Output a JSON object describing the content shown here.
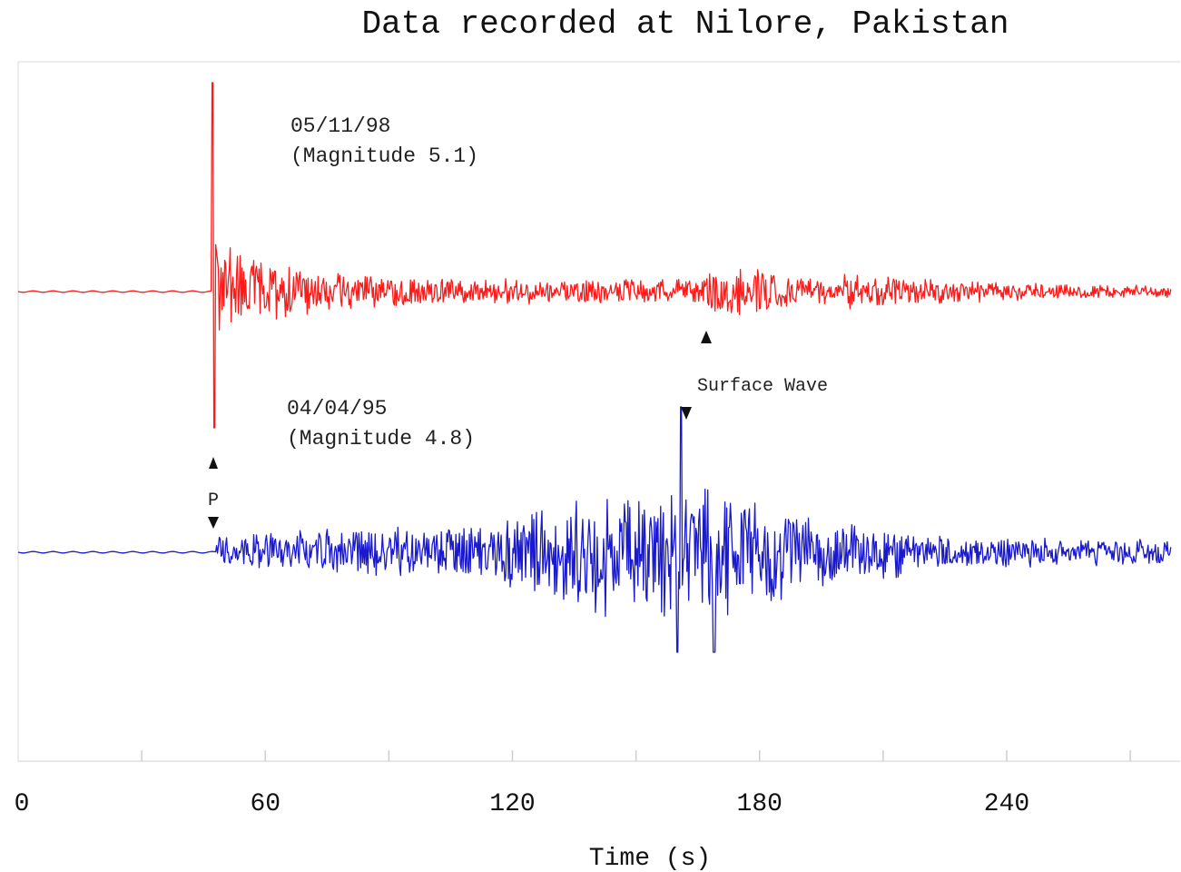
{
  "chart_data": {
    "type": "line",
    "title": "Data recorded at Nilore, Pakistan",
    "xlabel": "Time (s)",
    "ylabel": "",
    "xlim": [
      0,
      280
    ],
    "x_ticks": [
      0,
      60,
      120,
      180,
      240
    ],
    "grid": false,
    "series": [
      {
        "color": "#ff1a1a",
        "label_date": "05/11/98",
        "label_magnitude": "(Magnitude 5.1)",
        "onset_s": 47,
        "peak_amplitude_up": 1.0,
        "peak_amplitude_down": 0.65,
        "coda_amplitude": 0.18
      },
      {
        "color": "#1a1acc",
        "label_date": "04/04/95",
        "label_magnitude": "(Magnitude 4.8)",
        "onset_s": 48,
        "surface_wave_peak_s": 161,
        "peak_amplitude_up": 0.55,
        "peak_amplitude_down": 0.5,
        "coda_amplitude": 0.08
      }
    ],
    "annotations": [
      {
        "text": "P",
        "x_s": 47
      },
      {
        "text": "Surface Wave",
        "x_s": 165
      }
    ]
  }
}
